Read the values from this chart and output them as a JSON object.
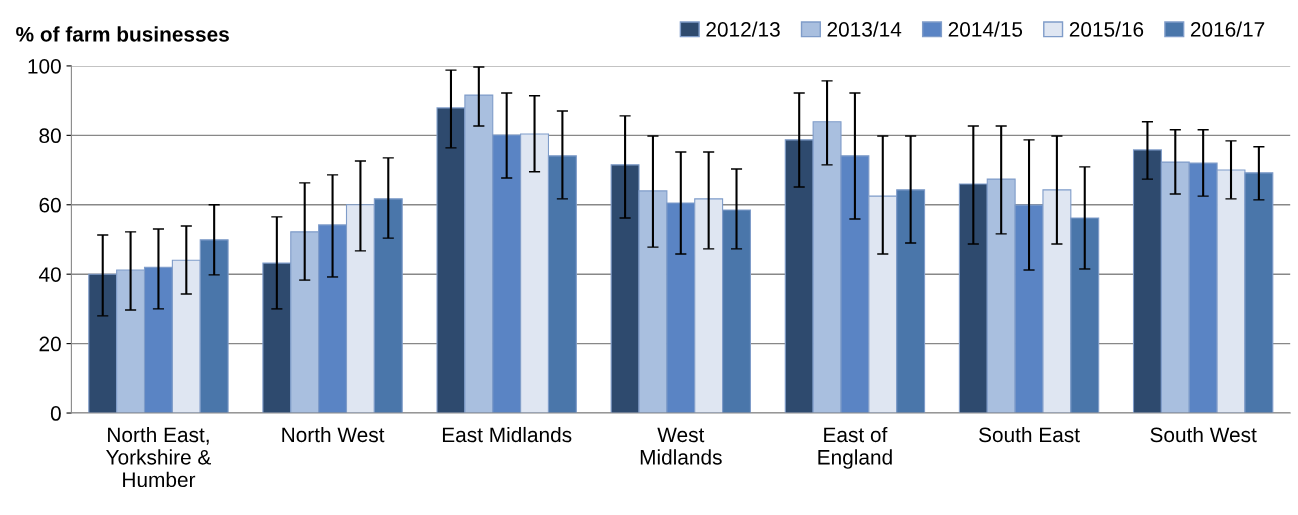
{
  "chart_data": {
    "type": "bar",
    "ylabel": "% of farm businesses",
    "categories": [
      "North East,\nYorkshire &\nHumber",
      "North West",
      "East Midlands",
      "West\nMidlands",
      "East of\nEngland",
      "South East",
      "South West"
    ],
    "series": [
      {
        "name": "2012/13",
        "color": "#2e4a6e",
        "values": [
          40,
          43.2,
          87.9,
          71.5,
          78.7,
          66,
          75.8
        ],
        "errors": [
          [
            28,
            51.3
          ],
          [
            30,
            56.5
          ],
          [
            76.4,
            98.8
          ],
          [
            56.2,
            85.6
          ],
          [
            65.1,
            92.2
          ],
          [
            48.7,
            82.7
          ],
          [
            67.4,
            83.9
          ]
        ]
      },
      {
        "name": "2013/14",
        "color": "#a9bfdf",
        "values": [
          41.2,
          52.2,
          91.6,
          64,
          83.9,
          67.4,
          72.3
        ],
        "errors": [
          [
            29.7,
            52.2
          ],
          [
            38.3,
            66.3
          ],
          [
            82.7,
            99.7
          ],
          [
            47.8,
            79.8
          ],
          [
            71.5,
            95.7
          ],
          [
            51.6,
            82.7
          ],
          [
            63.1,
            81.6
          ]
        ]
      },
      {
        "name": "2014/15",
        "color": "#5a84c4",
        "values": [
          42,
          54.2,
          80.1,
          60.5,
          74.1,
          59.9,
          72
        ],
        "errors": [
          [
            30,
            53
          ],
          [
            39.2,
            68.6
          ],
          [
            67.7,
            92.2
          ],
          [
            45.8,
            75.2
          ],
          [
            55.9,
            92.2
          ],
          [
            41.2,
            78.7
          ],
          [
            62.5,
            81.6
          ]
        ]
      },
      {
        "name": "2015/16",
        "color": "#dfe6f2",
        "values": [
          44,
          60,
          80.4,
          61.7,
          62.5,
          64.3,
          70
        ],
        "errors": [
          [
            34.3,
            53.9
          ],
          [
            46.7,
            72.6
          ],
          [
            69.5,
            91.4
          ],
          [
            47.3,
            75.2
          ],
          [
            45.8,
            79.8
          ],
          [
            48.7,
            79.8
          ],
          [
            61.7,
            78.4
          ]
        ]
      },
      {
        "name": "2016/17",
        "color": "#4a76aa",
        "values": [
          49.9,
          61.7,
          74.1,
          58.5,
          64.3,
          56.2,
          69.2
        ],
        "errors": [
          [
            39.8,
            60
          ],
          [
            50.4,
            73.5
          ],
          [
            61.7,
            87
          ],
          [
            47.3,
            70.3
          ],
          [
            49,
            79.8
          ],
          [
            41.5,
            70.9
          ],
          [
            61.4,
            76.7
          ]
        ]
      }
    ],
    "ylim": [
      0,
      100
    ],
    "yticks": [
      0,
      20,
      40,
      60,
      80,
      100
    ],
    "grid": "y",
    "legend": "top right"
  }
}
